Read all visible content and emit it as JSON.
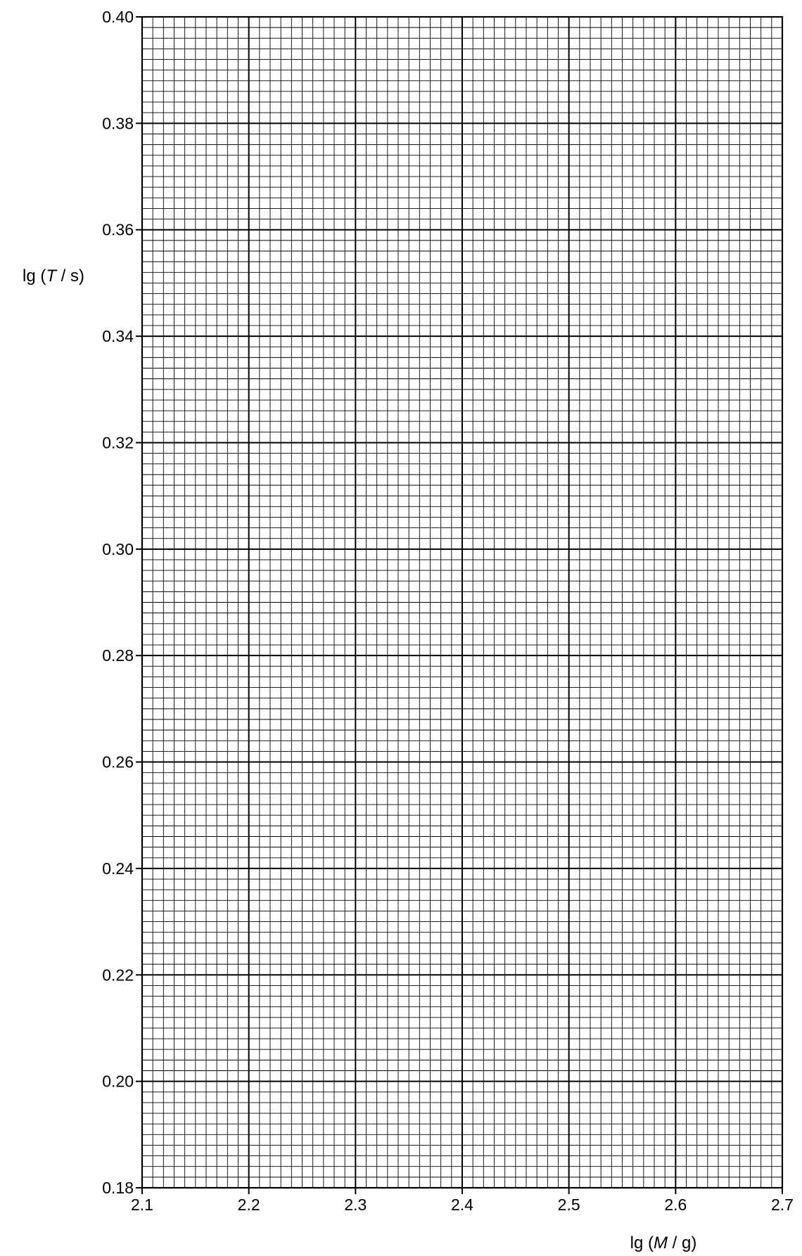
{
  "chart_data": {
    "type": "scatter",
    "title": "",
    "xlabel": {
      "prefix": "lg (",
      "variable": "M",
      "suffix": " / g)"
    },
    "ylabel": {
      "prefix": "lg (",
      "variable": "T",
      "suffix": " / s)"
    },
    "xlim": [
      2.1,
      2.7
    ],
    "ylim": [
      0.18,
      0.4
    ],
    "x_ticks": [
      "2.1",
      "2.2",
      "2.3",
      "2.4",
      "2.5",
      "2.6",
      "2.7"
    ],
    "y_ticks": [
      "0.18",
      "0.20",
      "0.22",
      "0.24",
      "0.26",
      "0.28",
      "0.30",
      "0.32",
      "0.34",
      "0.36",
      "0.38",
      "0.40"
    ],
    "grid": true,
    "minor_subdivisions": 10,
    "series": [],
    "colors": {
      "grid": "#000000",
      "background": "#ffffff"
    }
  }
}
